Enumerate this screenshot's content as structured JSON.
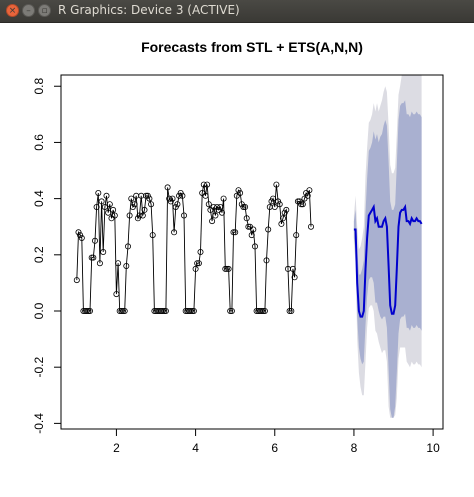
{
  "window": {
    "title": "R Graphics: Device 3 (ACTIVE)",
    "close_glyph": "×",
    "min_glyph": "–",
    "max_glyph": "▫"
  },
  "colors": {
    "series": "#000000",
    "forecast": "#0000cd",
    "band80": "#a9b0d0",
    "band95": "#dcdce3"
  },
  "chart_data": {
    "type": "line",
    "title": "Forecasts from STL +  ETS(A,N,N)",
    "xlabel": "",
    "ylabel": "",
    "xlim": [
      0.6,
      10.25
    ],
    "ylim": [
      -0.42,
      0.84
    ],
    "x_ticks": [
      2,
      4,
      6,
      8,
      10
    ],
    "y_ticks": [
      -0.4,
      -0.2,
      0.0,
      0.2,
      0.4,
      0.6,
      0.8
    ],
    "x_tick_labels": [
      "2",
      "4",
      "6",
      "8",
      "10"
    ],
    "y_tick_labels": [
      "-0.4",
      "-0.2",
      "0.0",
      "0.2",
      "0.4",
      "0.6",
      "0.8"
    ],
    "grid": false,
    "legend": "none",
    "series": [
      {
        "kind": "observed",
        "start": 1,
        "frequency": 24,
        "values": [
          0.11,
          0.28,
          0.27,
          0.26,
          0.0,
          0.0,
          0.0,
          0.0,
          0.0,
          0.19,
          0.19,
          0.25,
          0.37,
          0.42,
          0.17,
          0.39,
          0.21,
          0.37,
          0.41,
          0.35,
          0.38,
          0.33,
          0.36,
          0.34,
          0.06,
          0.17,
          0.0,
          0.0,
          0.0,
          0.0,
          0.16,
          0.23,
          0.34,
          0.4,
          0.37,
          0.38,
          0.41,
          0.33,
          0.34,
          0.41,
          0.34,
          0.36,
          0.41,
          0.41,
          0.4,
          0.38,
          0.27,
          0.0,
          0.0,
          0.0,
          0.0,
          0.0,
          0.0,
          0.0,
          0.0,
          0.44,
          0.4,
          0.39,
          0.4,
          0.28,
          0.37,
          0.38,
          0.41,
          0.42,
          0.41,
          0.34,
          0.0,
          0.0,
          0.0,
          0.0,
          0.0,
          0.0,
          0.15,
          0.17,
          0.17,
          0.21,
          0.42,
          0.45,
          0.41,
          0.45,
          0.38,
          0.36,
          0.32,
          0.37,
          0.34,
          0.37,
          0.36,
          0.37,
          0.35,
          0.4,
          0.15,
          0.15,
          0.15,
          0.0,
          0.0,
          0.28,
          0.28,
          0.41,
          0.43,
          0.42,
          0.38,
          0.37,
          0.37,
          0.33,
          0.3,
          0.3,
          0.27,
          0.29,
          0.23,
          0.0,
          0.0,
          0.0,
          0.0,
          0.0,
          0.0,
          0.18,
          0.29,
          0.37,
          0.39,
          0.4,
          0.37,
          0.45,
          0.39,
          0.38,
          0.31,
          0.33,
          0.35,
          0.36,
          0.15,
          0.0,
          0.0,
          0.15,
          0.12,
          0.27,
          0.39,
          0.39,
          0.38,
          0.38,
          0.4,
          0.42,
          0.41,
          0.43,
          0.3
        ]
      },
      {
        "kind": "forecast",
        "start": 8,
        "frequency": 24,
        "mean": [
          0.29,
          0.29,
          0.1,
          0.0,
          -0.02,
          -0.02,
          0.0,
          0.15,
          0.26,
          0.34,
          0.35,
          0.36,
          0.37,
          0.32,
          0.33,
          0.3,
          0.3,
          0.3,
          0.32,
          0.33,
          0.3,
          0.16,
          0.02,
          -0.01,
          -0.01,
          0.02,
          0.15,
          0.3,
          0.35,
          0.36,
          0.36,
          0.37,
          0.32,
          0.32,
          0.31,
          0.33,
          0.32,
          0.32,
          0.33,
          0.32,
          0.32,
          0.31
        ],
        "lo80": [
          0.26,
          0.22,
          -0.02,
          -0.13,
          -0.17,
          -0.19,
          -0.18,
          -0.05,
          0.05,
          0.11,
          0.12,
          0.12,
          0.1,
          0.03,
          0.03,
          0.0,
          -0.02,
          -0.03,
          -0.02,
          -0.02,
          -0.06,
          -0.21,
          -0.35,
          -0.38,
          -0.38,
          -0.34,
          -0.22,
          -0.08,
          -0.03,
          -0.02,
          -0.02,
          -0.01,
          -0.06,
          -0.06,
          -0.07,
          -0.05,
          -0.06,
          -0.06,
          -0.05,
          -0.06,
          -0.06,
          -0.07
        ],
        "hi80": [
          0.32,
          0.36,
          0.22,
          0.13,
          0.13,
          0.15,
          0.18,
          0.35,
          0.47,
          0.57,
          0.58,
          0.6,
          0.64,
          0.61,
          0.63,
          0.6,
          0.62,
          0.63,
          0.66,
          0.68,
          0.66,
          0.53,
          0.39,
          0.36,
          0.36,
          0.38,
          0.52,
          0.68,
          0.73,
          0.74,
          0.74,
          0.75,
          0.7,
          0.7,
          0.69,
          0.71,
          0.7,
          0.7,
          0.71,
          0.7,
          0.7,
          0.69
        ],
        "lo95": [
          0.24,
          0.17,
          -0.1,
          -0.22,
          -0.27,
          -0.3,
          -0.3,
          -0.18,
          -0.06,
          0.01,
          0.02,
          0.02,
          0.0,
          -0.07,
          -0.08,
          -0.11,
          -0.13,
          -0.15,
          -0.14,
          -0.14,
          -0.18,
          -0.34,
          -0.38,
          -0.38,
          -0.38,
          -0.37,
          -0.31,
          -0.17,
          -0.13,
          -0.13,
          -0.13,
          -0.13,
          -0.18,
          -0.19,
          -0.2,
          -0.18,
          -0.19,
          -0.19,
          -0.18,
          -0.19,
          -0.19,
          -0.2
        ],
        "hi95": [
          0.34,
          0.41,
          0.3,
          0.22,
          0.23,
          0.26,
          0.3,
          0.48,
          0.58,
          0.67,
          0.68,
          0.7,
          0.74,
          0.71,
          0.74,
          0.71,
          0.73,
          0.75,
          0.78,
          0.8,
          0.78,
          0.66,
          0.52,
          0.49,
          0.49,
          0.51,
          0.63,
          0.77,
          0.8,
          0.84,
          0.84,
          0.84,
          0.84,
          0.84,
          0.84,
          0.84,
          0.84,
          0.84,
          0.84,
          0.84,
          0.84,
          0.84
        ]
      }
    ]
  }
}
